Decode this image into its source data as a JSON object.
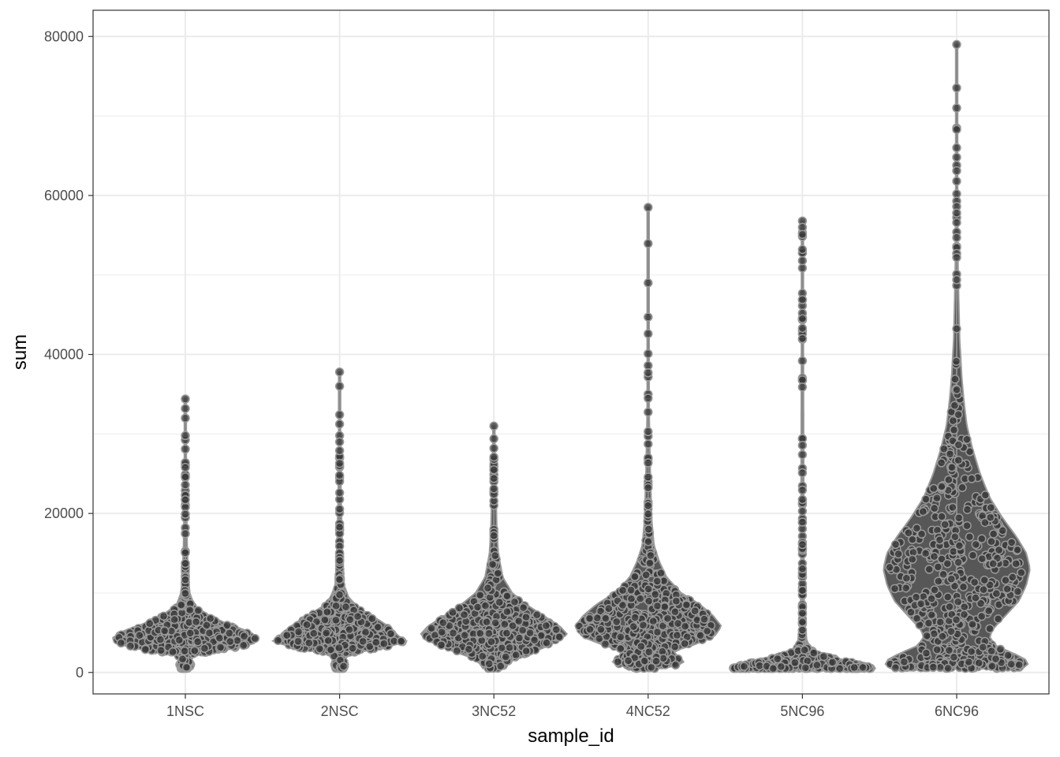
{
  "chart_data": {
    "type": "scatter",
    "subtype": "violin-with-jittered-points",
    "title": "",
    "xlabel": "sample_id",
    "ylabel": "sum",
    "ylim": [
      -2700,
      83300
    ],
    "yticks": [
      0,
      20000,
      40000,
      60000,
      80000
    ],
    "y_minor_gridlines": [
      10000,
      30000,
      50000,
      70000
    ],
    "grid": true,
    "legend": "none",
    "colors": {
      "point_fill": "#3a3a3a",
      "point_stroke": "#9a9a9a",
      "violin_fill": "#454545",
      "violin_outline": "#9a9a9a",
      "grid": "#ebebeb",
      "panel_border": "#333333"
    },
    "categories": [
      "1NSC",
      "2NSC",
      "3NC52",
      "4NC52",
      "5NC96",
      "6NC96"
    ],
    "distributions": [
      {
        "category": "1NSC",
        "min": 500,
        "max": 34500,
        "density_profile": [
          [
            500,
            0.1
          ],
          [
            1000,
            0.12
          ],
          [
            1400,
            0.1
          ],
          [
            1700,
            0.08
          ],
          [
            2300,
            0.18
          ],
          [
            2900,
            0.6
          ],
          [
            3600,
            0.93
          ],
          [
            4300,
            1.0
          ],
          [
            5200,
            0.85
          ],
          [
            6200,
            0.55
          ],
          [
            7300,
            0.3
          ],
          [
            8500,
            0.12
          ],
          [
            10000,
            0.06
          ],
          [
            12000,
            0.04
          ],
          [
            16000,
            0.025
          ],
          [
            22000,
            0.015
          ],
          [
            28000,
            0.01
          ],
          [
            34500,
            0.0
          ]
        ],
        "outliers": [
          34400,
          33200,
          32000,
          29800,
          28100,
          26400,
          25800,
          24600,
          23600
        ]
      },
      {
        "category": "2NSC",
        "min": 500,
        "max": 37800,
        "density_profile": [
          [
            500,
            0.1
          ],
          [
            1000,
            0.12
          ],
          [
            1500,
            0.1
          ],
          [
            1900,
            0.08
          ],
          [
            2500,
            0.22
          ],
          [
            3200,
            0.65
          ],
          [
            3900,
            0.92
          ],
          [
            4600,
            0.8
          ],
          [
            5600,
            0.7
          ],
          [
            6800,
            0.5
          ],
          [
            8200,
            0.25
          ],
          [
            9500,
            0.12
          ],
          [
            11000,
            0.06
          ],
          [
            14000,
            0.04
          ],
          [
            18000,
            0.03
          ],
          [
            22000,
            0.02
          ],
          [
            30000,
            0.01
          ],
          [
            37800,
            0.0
          ]
        ],
        "outliers": [
          37800,
          36000,
          29800,
          29000,
          27900,
          26300,
          24800,
          22600
        ]
      },
      {
        "category": "3NC52",
        "min": 500,
        "max": 31000,
        "density_profile": [
          [
            500,
            0.15
          ],
          [
            1200,
            0.2
          ],
          [
            2000,
            0.35
          ],
          [
            2800,
            0.6
          ],
          [
            3800,
            0.85
          ],
          [
            4800,
            1.0
          ],
          [
            5800,
            0.9
          ],
          [
            7000,
            0.7
          ],
          [
            8500,
            0.45
          ],
          [
            10000,
            0.25
          ],
          [
            12000,
            0.12
          ],
          [
            15000,
            0.06
          ],
          [
            18000,
            0.04
          ],
          [
            22000,
            0.03
          ],
          [
            26000,
            0.02
          ],
          [
            31000,
            0.0
          ]
        ],
        "outliers": [
          31000,
          29400,
          28200,
          27100,
          25500,
          24400,
          23100
        ]
      },
      {
        "category": "4NC52",
        "min": 500,
        "max": 58500,
        "density_profile": [
          [
            500,
            0.2
          ],
          [
            1000,
            0.45
          ],
          [
            1500,
            0.5
          ],
          [
            2000,
            0.4
          ],
          [
            2700,
            0.35
          ],
          [
            3400,
            0.6
          ],
          [
            4500,
            0.9
          ],
          [
            5800,
            1.0
          ],
          [
            7200,
            0.88
          ],
          [
            8600,
            0.7
          ],
          [
            10000,
            0.45
          ],
          [
            12000,
            0.25
          ],
          [
            14000,
            0.15
          ],
          [
            16000,
            0.08
          ],
          [
            19000,
            0.05
          ],
          [
            25000,
            0.03
          ],
          [
            32000,
            0.015
          ],
          [
            40000,
            0.008
          ],
          [
            58500,
            0.0
          ]
        ],
        "outliers": [
          58500,
          49000,
          44700,
          42600,
          38600,
          37700,
          35000,
          34500
        ]
      },
      {
        "category": "5NC96",
        "min": 500,
        "max": 56800,
        "density_profile": [
          [
            500,
            1.0
          ],
          [
            900,
            0.9
          ],
          [
            1500,
            0.6
          ],
          [
            2200,
            0.28
          ],
          [
            3000,
            0.12
          ],
          [
            4000,
            0.06
          ],
          [
            5500,
            0.035
          ],
          [
            8000,
            0.025
          ],
          [
            15000,
            0.02
          ],
          [
            25000,
            0.018
          ],
          [
            35000,
            0.015
          ],
          [
            45000,
            0.012
          ],
          [
            56800,
            0.0
          ]
        ],
        "outliers": [
          56800,
          56000,
          55100,
          53200,
          51800,
          47700,
          46900,
          45200,
          44500,
          43300,
          42000
        ]
      },
      {
        "category": "6NC96",
        "min": 500,
        "max": 79000,
        "density_profile": [
          [
            500,
            0.9
          ],
          [
            1300,
            1.0
          ],
          [
            2300,
            0.8
          ],
          [
            3300,
            0.55
          ],
          [
            4300,
            0.45
          ],
          [
            5300,
            0.48
          ],
          [
            7000,
            0.65
          ],
          [
            9000,
            0.85
          ],
          [
            11000,
            0.95
          ],
          [
            13000,
            1.0
          ],
          [
            15000,
            0.95
          ],
          [
            17000,
            0.82
          ],
          [
            19500,
            0.62
          ],
          [
            22000,
            0.45
          ],
          [
            25000,
            0.32
          ],
          [
            28000,
            0.22
          ],
          [
            31000,
            0.14
          ],
          [
            34000,
            0.1
          ],
          [
            37000,
            0.07
          ],
          [
            42000,
            0.04
          ],
          [
            50000,
            0.02
          ],
          [
            60000,
            0.012
          ],
          [
            70000,
            0.008
          ],
          [
            79000,
            0.0
          ]
        ],
        "outliers": [
          79000,
          71000,
          68500,
          68300,
          66000,
          64800,
          63800,
          63100,
          61800,
          60200,
          59300,
          58600,
          57800,
          56600,
          55400,
          54700,
          52700,
          52200,
          50100,
          49400
        ]
      }
    ]
  }
}
